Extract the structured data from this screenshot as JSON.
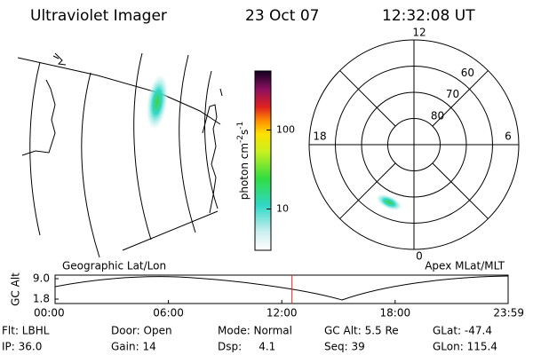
{
  "header": {
    "instrument": "Ultraviolet Imager",
    "date": "23 Oct 07",
    "time": "12:32:08 UT"
  },
  "colorbar": {
    "label_parts": [
      "photon cm",
      "-2",
      "s",
      "-1"
    ],
    "scale": "log",
    "range": [
      3,
      560
    ],
    "ticks": [
      10,
      100
    ]
  },
  "polar": {
    "edge_lat": 50,
    "mlat_ticks": [
      60,
      70,
      80
    ],
    "mlt_ticks": [
      12,
      18,
      6,
      0
    ]
  },
  "timeline": {
    "left_title": "Geographic Lat/Lon",
    "right_title": "Apex MLat/MLT",
    "y_label": "GC Alt",
    "ylim": [
      1.8,
      9.0
    ],
    "yticks": [
      {
        "value": 9.0,
        "label": "9.0"
      },
      1.8
    ],
    "xlim": [
      0,
      23.98
    ],
    "xticks": [
      {
        "value": 0,
        "label": "00:00"
      },
      {
        "value": 6,
        "label": "06:00"
      },
      {
        "value": 12,
        "label": "12:00"
      },
      {
        "value": 18,
        "label": "18:00"
      },
      {
        "value": 23.98,
        "label": "23:59"
      }
    ],
    "marker_hour": 12.54,
    "marker_color": "#dd2222"
  },
  "footer": [
    [
      "Flt: LBHL",
      "Door: Open",
      "Mode: Normal",
      "GC Alt: 5.5 Re",
      "GLat: -47.4"
    ],
    [
      "IP: 36.0",
      "Gain: 14",
      "Dsp:     4.1",
      "Seq: 39",
      "GLon: 115.4"
    ]
  ]
}
